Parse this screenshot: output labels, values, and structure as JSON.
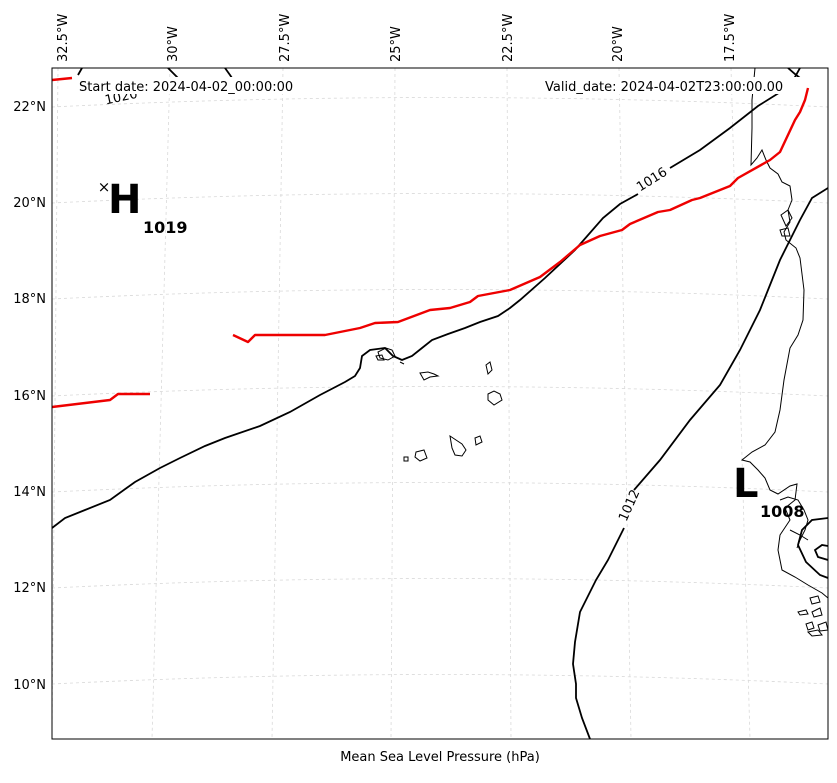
{
  "map": {
    "start_date_label": "Start date: 2024-04-02_00:00:00",
    "valid_date_label": "Valid_date: 2024-04-02T23:00:00.00",
    "xlabel": "Mean Sea Level Pressure (hPa)",
    "lon_ticks": [
      "32.5°W",
      "30°W",
      "27.5°W",
      "25°W",
      "22.5°W",
      "20°W",
      "17.5°W"
    ],
    "lat_ticks": [
      "22°N",
      "20°N",
      "18°N",
      "16°N",
      "14°N",
      "12°N",
      "10°N"
    ],
    "high": {
      "letter": "H",
      "value": "1019",
      "marker": "×"
    },
    "low": {
      "letter": "L",
      "value": "1008"
    },
    "isobar_labels": [
      "1016",
      "1012",
      "1020"
    ],
    "colors": {
      "isobar": "#000000",
      "front": "#ee0000",
      "grid": "#cccccc"
    },
    "grid": true,
    "features": [
      "isobar-1016",
      "isobar-1012",
      "isobar-1008",
      "front-line",
      "coastline-africa",
      "cape-verde-islands"
    ]
  }
}
